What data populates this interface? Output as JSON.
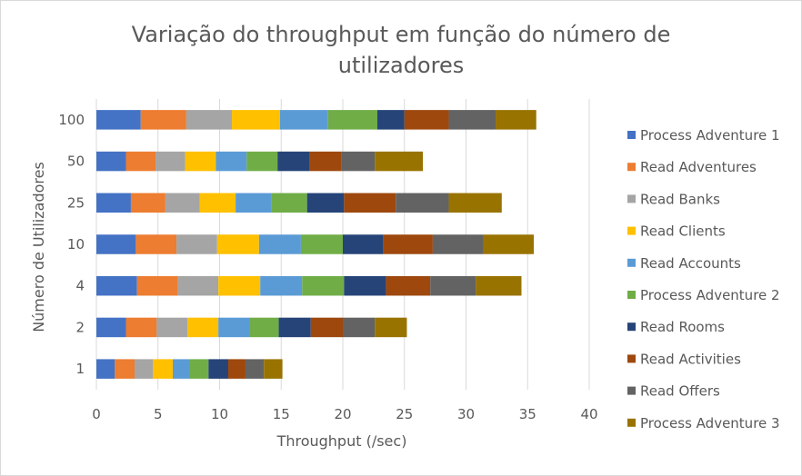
{
  "chart_data": {
    "type": "bar",
    "orientation": "horizontal",
    "stacked": true,
    "title_lines": [
      "Variação do throughput em função do número de",
      "utilizadores"
    ],
    "title": "Variação do throughput em função do número de utilizadores",
    "xlabel": "Throughput (/sec)",
    "ylabel": "Número de Utilizadores",
    "xlim": [
      0,
      40
    ],
    "xticks": [
      "0",
      "5",
      "10",
      "15",
      "20",
      "25",
      "30",
      "35",
      "40"
    ],
    "grid": "vertical",
    "legend_position": "right",
    "categories": [
      "1",
      "2",
      "4",
      "10",
      "25",
      "50",
      "100"
    ],
    "series": [
      {
        "name": "Process Adventure 1",
        "color": "#4472C4",
        "values": [
          1.5,
          2.4,
          3.3,
          3.2,
          2.8,
          2.4,
          3.6
        ]
      },
      {
        "name": "Read Adventures",
        "color": "#ED7D31",
        "values": [
          1.6,
          2.5,
          3.3,
          3.3,
          2.8,
          2.4,
          3.7
        ]
      },
      {
        "name": "Read Banks",
        "color": "#A5A5A5",
        "values": [
          1.5,
          2.5,
          3.3,
          3.3,
          2.8,
          2.4,
          3.7
        ]
      },
      {
        "name": "Read Clients",
        "color": "#FFC000",
        "values": [
          1.6,
          2.5,
          3.4,
          3.4,
          2.9,
          2.5,
          3.9
        ]
      },
      {
        "name": "Read Accounts",
        "color": "#5B9BD5",
        "values": [
          1.4,
          2.5,
          3.4,
          3.4,
          2.9,
          2.5,
          3.9
        ]
      },
      {
        "name": "Process Adventure 2",
        "color": "#70AD47",
        "values": [
          1.5,
          2.4,
          3.4,
          3.4,
          2.9,
          2.5,
          4.0
        ]
      },
      {
        "name": "Read Rooms",
        "color": "#264478",
        "values": [
          1.6,
          2.6,
          3.4,
          3.3,
          3.0,
          2.6,
          2.2
        ]
      },
      {
        "name": "Read Activities",
        "color": "#9E480E",
        "values": [
          1.4,
          2.6,
          3.6,
          4.0,
          4.2,
          2.6,
          3.6
        ]
      },
      {
        "name": "Read Offers",
        "color": "#636363",
        "values": [
          1.5,
          2.6,
          3.7,
          4.1,
          4.3,
          2.7,
          3.8
        ]
      },
      {
        "name": "Process Adventure 3",
        "color": "#997300",
        "values": [
          1.5,
          2.6,
          3.7,
          4.1,
          4.3,
          3.9,
          3.3
        ]
      }
    ]
  }
}
